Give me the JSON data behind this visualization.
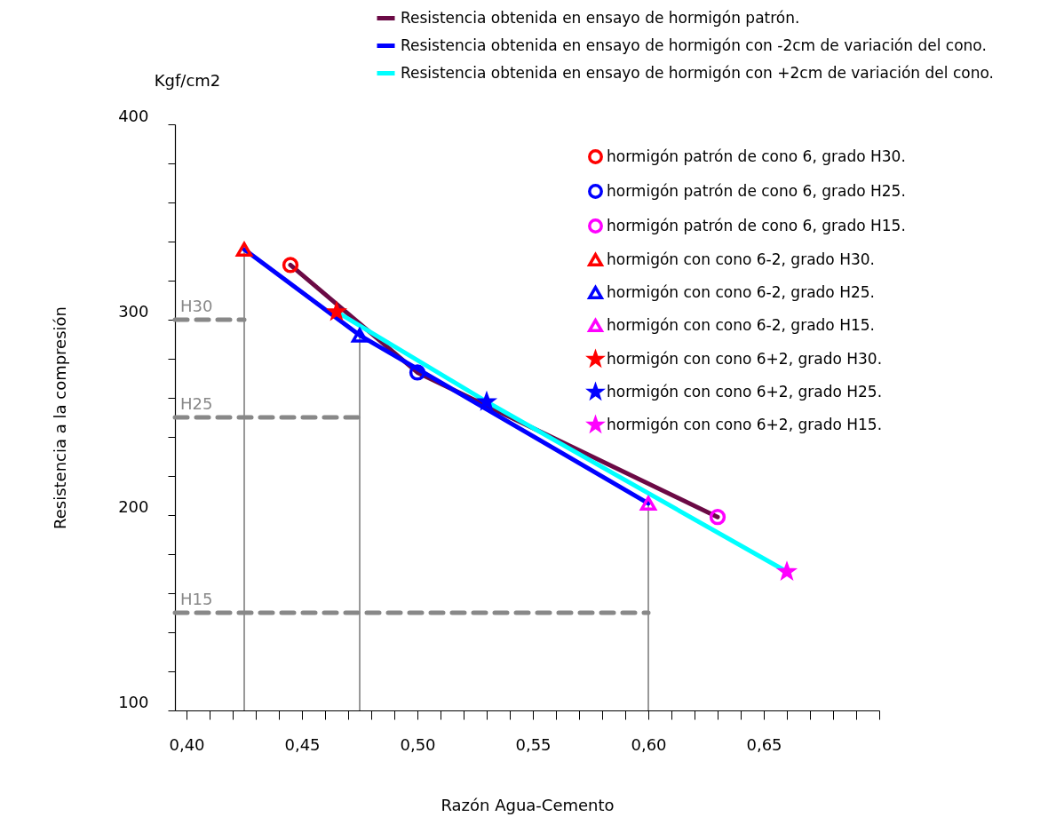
{
  "chart_data": {
    "type": "line",
    "xlabel": "Razón Agua-Cemento",
    "ylabel": "Resistencia a la compresión",
    "annotations": [
      "Kgf/cm2"
    ],
    "xlim": [
      0.395,
      0.7
    ],
    "ylim": [
      100,
      400
    ],
    "xticks": [
      {
        "value": 0.4,
        "label": "0,40"
      },
      {
        "value": 0.41,
        "label": null
      },
      {
        "value": 0.42,
        "label": null
      },
      {
        "value": 0.43,
        "label": null
      },
      {
        "value": 0.44,
        "label": null
      },
      {
        "value": 0.45,
        "label": "0,45"
      },
      {
        "value": 0.46,
        "label": null
      },
      {
        "value": 0.47,
        "label": null
      },
      {
        "value": 0.48,
        "label": null
      },
      {
        "value": 0.49,
        "label": null
      },
      {
        "value": 0.5,
        "label": "0,50"
      },
      {
        "value": 0.51,
        "label": null
      },
      {
        "value": 0.52,
        "label": null
      },
      {
        "value": 0.53,
        "label": null
      },
      {
        "value": 0.54,
        "label": null
      },
      {
        "value": 0.55,
        "label": "0,55"
      },
      {
        "value": 0.56,
        "label": null
      },
      {
        "value": 0.57,
        "label": null
      },
      {
        "value": 0.58,
        "label": null
      },
      {
        "value": 0.59,
        "label": null
      },
      {
        "value": 0.6,
        "label": "0,60"
      },
      {
        "value": 0.61,
        "label": null
      },
      {
        "value": 0.62,
        "label": null
      },
      {
        "value": 0.63,
        "label": null
      },
      {
        "value": 0.64,
        "label": null
      },
      {
        "value": 0.65,
        "label": "0,65"
      },
      {
        "value": 0.66,
        "label": null
      },
      {
        "value": 0.67,
        "label": null
      },
      {
        "value": 0.68,
        "label": null
      },
      {
        "value": 0.69,
        "label": null
      },
      {
        "value": 0.7,
        "label": null
      }
    ],
    "yticks": [
      100,
      {
        "value": 120,
        "label": null
      },
      {
        "value": 140,
        "label": null
      },
      {
        "value": 160,
        "label": null
      },
      {
        "value": 180,
        "label": null
      },
      200,
      {
        "value": 220,
        "label": null
      },
      {
        "value": 240,
        "label": null
      },
      {
        "value": 260,
        "label": null
      },
      {
        "value": 280,
        "label": null
      },
      300,
      {
        "value": 320,
        "label": null
      },
      {
        "value": 340,
        "label": null
      },
      {
        "value": 360,
        "label": null
      },
      {
        "value": 380,
        "label": null
      },
      400
    ],
    "grid": false,
    "legend": "top right",
    "series": [
      {
        "type": "line",
        "name": "Resistencia obtenida en ensayo de hormigón patrón.",
        "color": "#6b0a45",
        "x": [
          0.445,
          0.5,
          0.63
        ],
        "values": [
          328,
          273,
          199
        ]
      },
      {
        "type": "line",
        "name": "Resistencia obtenida en ensayo de hormigón con -2cm de variación del cono.",
        "color": "#0000ff",
        "x": [
          0.425,
          0.475,
          0.6
        ],
        "values": [
          336,
          292,
          206
        ]
      },
      {
        "type": "line",
        "name": "Resistencia obtenida en ensayo de hormigón con +2cm de variación del cono.",
        "color": "#00ffff",
        "x": [
          0.465,
          0.53,
          0.66
        ],
        "values": [
          304,
          258,
          171
        ]
      },
      {
        "type": "scatter",
        "name": "hormigón patrón de cono 6, grado H30.",
        "color": "#ff0000",
        "marker": "circle",
        "x": [
          0.445
        ],
        "values": [
          328
        ]
      },
      {
        "type": "scatter",
        "name": "hormigón patrón de cono 6, grado H25.",
        "color": "#0000ff",
        "marker": "circle",
        "x": [
          0.5
        ],
        "values": [
          273
        ]
      },
      {
        "type": "scatter",
        "name": "hormigón patrón de cono 6, grado H15.",
        "color": "#ff00ff",
        "marker": "circle",
        "x": [
          0.63
        ],
        "values": [
          199
        ]
      },
      {
        "type": "scatter",
        "name": "hormigón con cono 6-2, grado H30.",
        "color": "#ff0000",
        "marker": "triangle",
        "x": [
          0.425
        ],
        "values": [
          336
        ]
      },
      {
        "type": "scatter",
        "name": "hormigón con cono 6-2, grado H25.",
        "color": "#0000ff",
        "marker": "triangle",
        "x": [
          0.475
        ],
        "values": [
          292
        ]
      },
      {
        "type": "scatter",
        "name": "hormigón con cono 6-2, grado H15.",
        "color": "#ff00ff",
        "marker": "triangle",
        "x": [
          0.6
        ],
        "values": [
          206
        ]
      },
      {
        "type": "scatter",
        "name": "hormigón con cono 6+2, grado H30.",
        "color": "#ff0000",
        "marker": "star",
        "x": [
          0.465
        ],
        "values": [
          304
        ]
      },
      {
        "type": "scatter",
        "name": "hormigón con cono 6+2, grado H25.",
        "color": "#0000ff",
        "marker": "star",
        "x": [
          0.53
        ],
        "values": [
          258
        ]
      },
      {
        "type": "scatter",
        "name": "hormigón con cono 6+2, grado H15.",
        "color": "#ff00ff",
        "marker": "star",
        "x": [
          0.66
        ],
        "values": [
          171
        ]
      }
    ],
    "ref_lines": [
      {
        "axis": "y",
        "value": 300,
        "label": "H30",
        "color": "#888888",
        "line_style": "dashed"
      },
      {
        "axis": "y",
        "value": 250,
        "label": "H25",
        "color": "#888888",
        "line_style": "dashed"
      },
      {
        "axis": "y",
        "value": 150,
        "label": "H15",
        "color": "#888888",
        "line_style": "dashed"
      },
      {
        "axis": "x",
        "value": 0.425,
        "label": null,
        "color": "#333333",
        "line_style": "solid"
      },
      {
        "axis": "x",
        "value": 0.475,
        "label": null,
        "color": "#333333",
        "line_style": "solid"
      },
      {
        "axis": "x",
        "value": 0.6,
        "label": null,
        "color": "#333333",
        "line_style": "solid"
      }
    ]
  }
}
